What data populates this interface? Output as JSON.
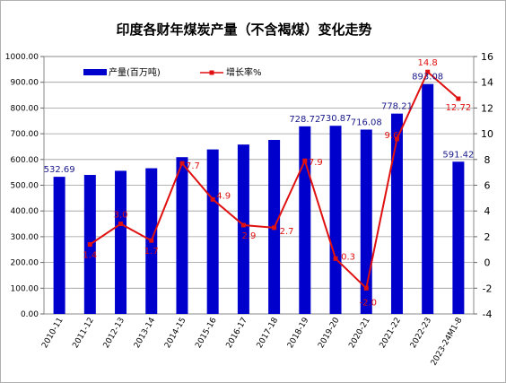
{
  "chart_data": {
    "type": "bar",
    "title": "印度各财年煤炭产量（不含褐煤）变化走势",
    "categories": [
      "2010-11",
      "2011-12",
      "2012-13",
      "2013-14",
      "2014-15",
      "2015-16",
      "2016-17",
      "2017-18",
      "2018-19",
      "2019-20",
      "2020-21",
      "2021-22",
      "2022-23",
      "2023-24M1-8"
    ],
    "series": [
      {
        "name": "产量(百万吨)",
        "type": "bar",
        "axis": "left",
        "color": "#0000cc",
        "values": [
          532.69,
          540,
          556,
          566,
          609,
          639,
          658,
          676,
          728.72,
          730.87,
          716.08,
          778.21,
          893.08,
          591.42
        ],
        "labels": [
          "532.69",
          "",
          "",
          "",
          "",
          "",
          "",
          "",
          "728.72",
          "730.87",
          "716.08",
          "778.21",
          "893.08",
          "591.42"
        ]
      },
      {
        "name": "增长率%",
        "type": "line",
        "axis": "right",
        "color": "#e01010",
        "values": [
          null,
          1.4,
          3.0,
          1.7,
          7.7,
          4.9,
          2.9,
          2.7,
          7.9,
          0.3,
          -2.0,
          9.6,
          14.8,
          12.72
        ],
        "labels": [
          "",
          "1.4",
          "3.0",
          "1.7",
          "7.7",
          "4.9",
          "2.9",
          "2.7",
          "7.9",
          "0.3",
          "-2.0",
          "9.6",
          "14.8",
          "12.72"
        ]
      }
    ],
    "y_left": {
      "min": 0,
      "max": 1000,
      "step": 100,
      "ticks": [
        "0.00",
        "100.00",
        "200.00",
        "300.00",
        "400.00",
        "500.00",
        "600.00",
        "700.00",
        "800.00",
        "900.00",
        "1000.00"
      ]
    },
    "y_right": {
      "min": -4,
      "max": 16,
      "step": 2,
      "ticks": [
        "-4",
        "-2",
        "0",
        "2",
        "4",
        "6",
        "8",
        "10",
        "12",
        "14",
        "16"
      ]
    },
    "legend_position": "top-left",
    "grid": true
  }
}
